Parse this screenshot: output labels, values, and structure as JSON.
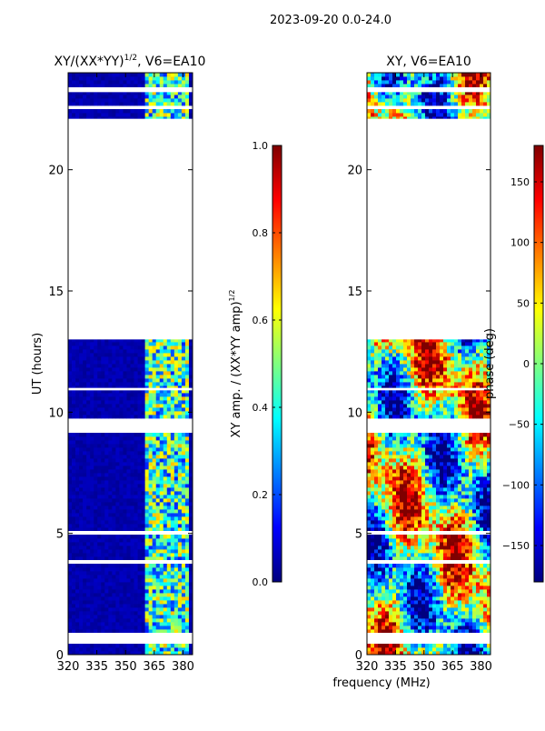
{
  "page": {
    "suptitle": "2023-09-20 0.0-24.0",
    "shared_xlabel": "frequency (MHz)"
  },
  "colors": {
    "jet": [
      "#00007f",
      "#0000ff",
      "#007fff",
      "#00ffff",
      "#7fff7f",
      "#ffff00",
      "#ff7f00",
      "#ff0000",
      "#7f0000"
    ],
    "gap": "#ffffff",
    "frame": "#000000"
  },
  "chart_data": [
    {
      "type": "heatmap",
      "title_main": "XY/(XX*YY)",
      "title_sup": "1/2",
      "title_suffix": ", V6=EA10",
      "xlabel": "",
      "ylabel": "UT (hours)",
      "xlim": [
        320,
        385
      ],
      "ylim": [
        0,
        24
      ],
      "xticks": [
        320,
        335,
        350,
        365,
        380
      ],
      "yticks": [
        0,
        5,
        10,
        15,
        20
      ],
      "data_gaps_hours": [
        [
          0.5,
          0.9
        ],
        [
          13.0,
          22.1
        ],
        [
          9.2,
          9.7
        ],
        [
          10.9,
          11.0
        ],
        [
          23.2,
          23.4
        ],
        [
          22.5,
          22.6
        ],
        [
          3.8,
          3.9
        ],
        [
          5.0,
          5.1
        ]
      ],
      "band_mhz": [
        361,
        383
      ],
      "colorbar": {
        "label_main": "XY amp. / (XX*YY amp)",
        "label_sup": "1/2",
        "vmin": 0.0,
        "vmax": 1.0,
        "ticks": [
          "0.0",
          "0.2",
          "0.4",
          "0.6",
          "0.8",
          "1.0"
        ]
      }
    },
    {
      "type": "heatmap",
      "title_main": "XY, V6=EA10",
      "title_sup": "",
      "title_suffix": "",
      "xlabel": "frequency (MHz)",
      "ylabel": "",
      "xlim": [
        320,
        385
      ],
      "ylim": [
        0,
        24
      ],
      "xticks": [
        320,
        335,
        350,
        365,
        380
      ],
      "yticks": [
        0,
        5,
        10,
        15,
        20
      ],
      "data_gaps_hours": [
        [
          0.5,
          0.9
        ],
        [
          13.0,
          22.1
        ],
        [
          9.2,
          9.7
        ],
        [
          10.9,
          11.0
        ],
        [
          23.2,
          23.4
        ],
        [
          22.5,
          22.6
        ],
        [
          3.8,
          3.9
        ],
        [
          5.0,
          5.1
        ]
      ],
      "colorbar": {
        "label_main": "phase (deg)",
        "label_sup": "",
        "vmin": -180,
        "vmax": 180,
        "ticks": [
          "−150",
          "−100",
          "−50",
          "0",
          "50",
          "100",
          "150"
        ],
        "tick_values": [
          -150,
          -100,
          -50,
          0,
          50,
          100,
          150
        ]
      }
    }
  ]
}
